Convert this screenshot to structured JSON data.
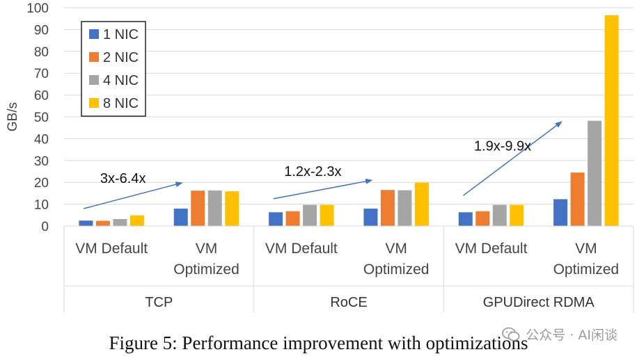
{
  "chart_data": {
    "type": "bar",
    "title": "",
    "ylabel": "GB/s",
    "ylim": [
      0,
      100
    ],
    "yticks": [
      0,
      10,
      20,
      30,
      40,
      50,
      60,
      70,
      80,
      90,
      100
    ],
    "grid": true,
    "legend_position": "top-left",
    "groups": [
      {
        "label": "TCP",
        "categories": [
          {
            "label": [
              "VM Default"
            ]
          },
          {
            "label": [
              "VM",
              "Optimized"
            ]
          }
        ]
      },
      {
        "label": "RoCE",
        "categories": [
          {
            "label": [
              "VM Default"
            ]
          },
          {
            "label": [
              "VM",
              "Optimized"
            ]
          }
        ]
      },
      {
        "label": "GPUDirect RDMA",
        "categories": [
          {
            "label": [
              "VM Default"
            ]
          },
          {
            "label": [
              "VM",
              "Optimized"
            ]
          }
        ]
      }
    ],
    "series": [
      {
        "name": "1 NIC",
        "color": "#4472C4",
        "values": [
          2.5,
          8,
          6.3,
          8,
          6.3,
          12.3
        ]
      },
      {
        "name": "2 NIC",
        "color": "#ED7D31",
        "values": [
          2.4,
          16.2,
          6.8,
          16.5,
          6.8,
          24.5
        ]
      },
      {
        "name": "4 NIC",
        "color": "#A5A5A5",
        "values": [
          3.2,
          16.3,
          9.7,
          16.4,
          9.7,
          48.2
        ]
      },
      {
        "name": "8 NIC",
        "color": "#FFC000",
        "values": [
          4.9,
          15.9,
          9.7,
          19.9,
          9.7,
          96.5
        ]
      }
    ],
    "annotations": [
      {
        "text": "3x-6.4x",
        "from": [
          0,
          8
        ],
        "to": [
          1,
          19.8
        ]
      },
      {
        "text": "1.2x-2.3x",
        "from": [
          2,
          12.5
        ],
        "to": [
          3,
          21
        ]
      },
      {
        "text": "1.9x-9.9x",
        "from": [
          4,
          14
        ],
        "to": [
          5,
          47.8
        ]
      }
    ]
  },
  "caption": "Figure 5: Performance improvement with optimizations",
  "watermark": "公众号 · AI闲谈"
}
